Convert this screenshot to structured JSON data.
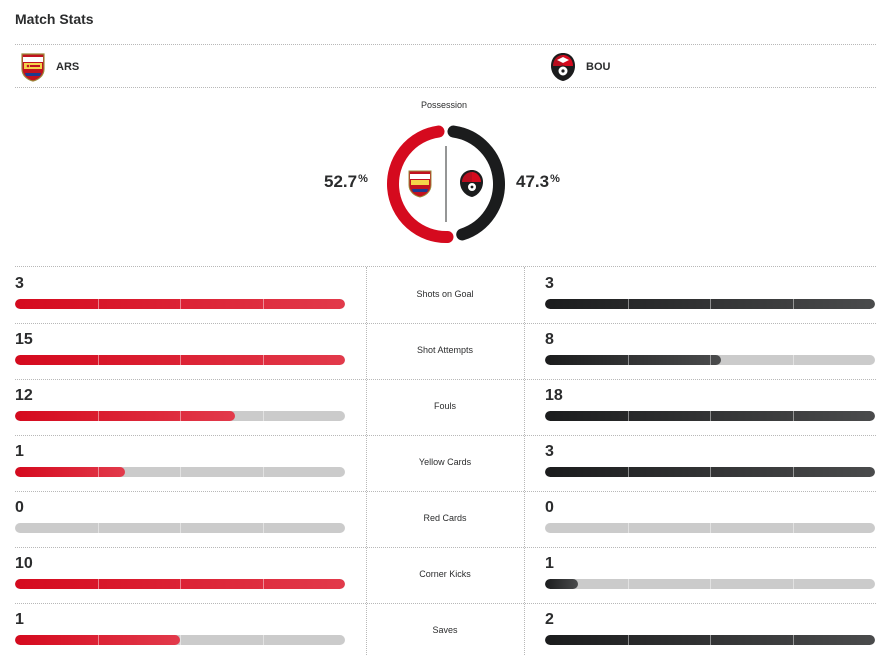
{
  "title": "Match Stats",
  "home": {
    "abbr": "ARS",
    "crest_icon": "arsenal-crest-icon",
    "color": "#d50a1e",
    "crest_text": "Arsenal"
  },
  "away": {
    "abbr": "BOU",
    "crest_icon": "bournemouth-crest-icon",
    "color": "#1b1c1d"
  },
  "possession": {
    "label": "Possession",
    "home_value": "52.7",
    "away_value": "47.3",
    "unit": "%",
    "home_fraction": 0.527,
    "away_fraction": 0.473
  },
  "stats": [
    {
      "label": "Shots on Goal",
      "home": "3",
      "away": "3",
      "home_fill": 1.0,
      "away_fill": 1.0
    },
    {
      "label": "Shot Attempts",
      "home": "15",
      "away": "8",
      "home_fill": 1.0,
      "away_fill": 0.533
    },
    {
      "label": "Fouls",
      "home": "12",
      "away": "18",
      "home_fill": 0.667,
      "away_fill": 1.0
    },
    {
      "label": "Yellow Cards",
      "home": "1",
      "away": "3",
      "home_fill": 0.333,
      "away_fill": 1.0
    },
    {
      "label": "Red Cards",
      "home": "0",
      "away": "0",
      "home_fill": 0,
      "away_fill": 0
    },
    {
      "label": "Corner Kicks",
      "home": "10",
      "away": "1",
      "home_fill": 1.0,
      "away_fill": 0.1
    },
    {
      "label": "Saves",
      "home": "1",
      "away": "2",
      "home_fill": 0.5,
      "away_fill": 1.0
    }
  ]
}
